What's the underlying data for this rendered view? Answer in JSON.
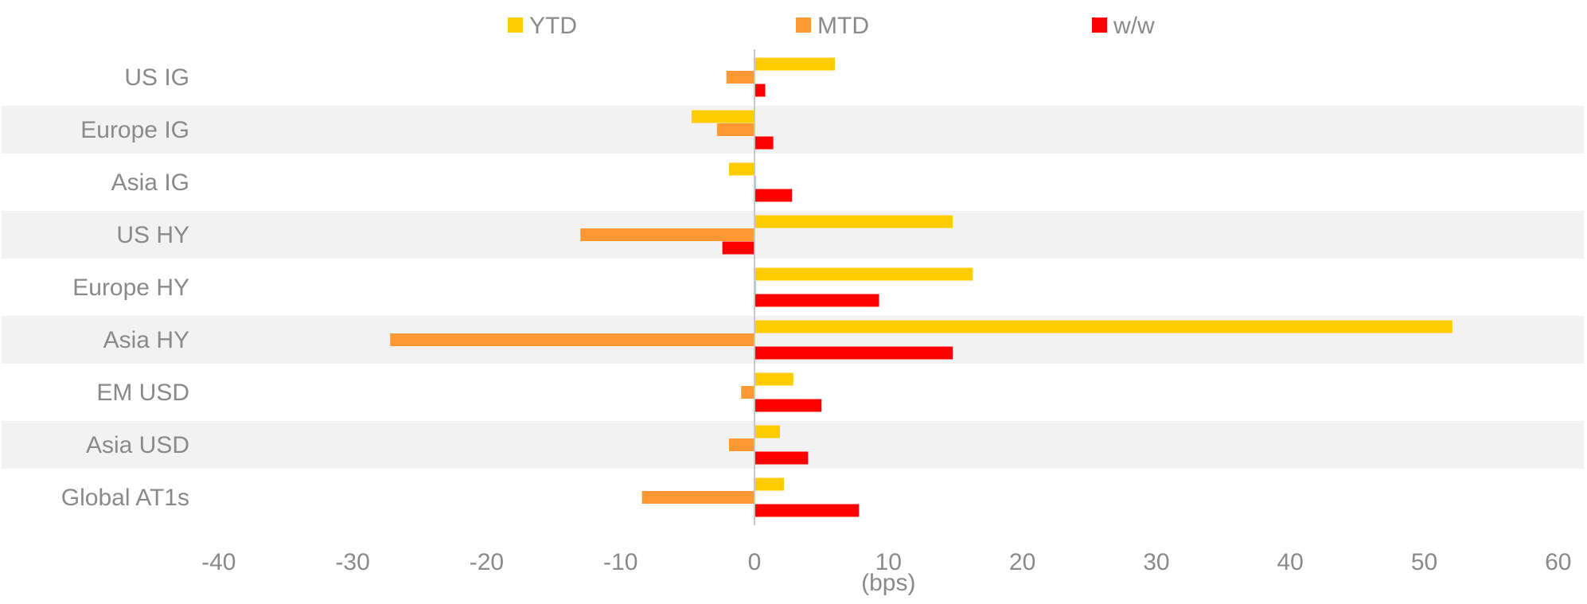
{
  "chart_data": {
    "type": "bar",
    "orientation": "horizontal",
    "categories": [
      "US IG",
      "Europe IG",
      "Asia IG",
      "US HY",
      "Europe HY",
      "Asia HY",
      "EM USD",
      "Asia USD",
      "Global AT1s"
    ],
    "series": [
      {
        "name": "YTD",
        "color": "#FFCC00",
        "values": [
          6.0,
          -4.7,
          -1.9,
          14.8,
          16.3,
          52.1,
          2.9,
          1.9,
          2.2
        ]
      },
      {
        "name": "MTD",
        "color": "#FF9933",
        "values": [
          -2.1,
          -2.8,
          0.1,
          -13.0,
          0.1,
          -27.2,
          -1.0,
          -1.9,
          -8.4
        ]
      },
      {
        "name": "w/w",
        "color": "#FF0000",
        "values": [
          0.8,
          1.4,
          2.8,
          -2.4,
          9.3,
          14.8,
          5.0,
          4.0,
          7.8
        ]
      }
    ],
    "xlim": [
      -40,
      60
    ],
    "xticks": [
      "-40",
      "-30",
      "-20",
      "-10",
      "0",
      "10",
      "20",
      "30",
      "40",
      "50",
      "60"
    ],
    "xlabel": "(bps)",
    "legend_position": "top",
    "banded_rows": true,
    "band_color": "#F2F2F2"
  }
}
